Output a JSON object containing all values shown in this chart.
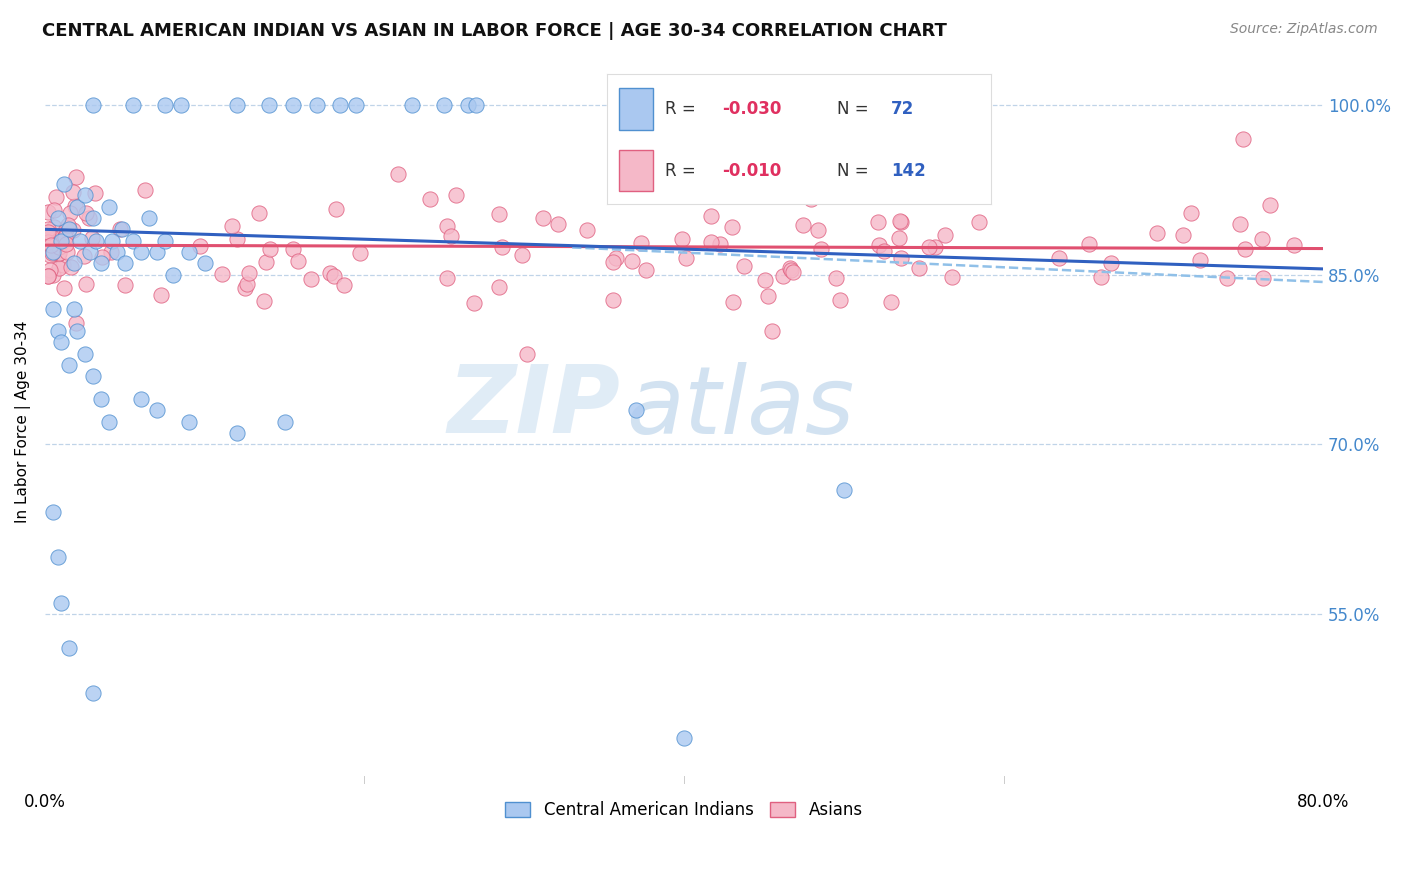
{
  "title": "CENTRAL AMERICAN INDIAN VS ASIAN IN LABOR FORCE | AGE 30-34 CORRELATION CHART",
  "source": "Source: ZipAtlas.com",
  "ylabel": "In Labor Force | Age 30-34",
  "ytick_labels": [
    "100.0%",
    "85.0%",
    "70.0%",
    "55.0%"
  ],
  "ytick_values": [
    1.0,
    0.85,
    0.7,
    0.55
  ],
  "xlim": [
    0.0,
    0.8
  ],
  "ylim": [
    0.4,
    1.04
  ],
  "watermark_zip": "ZIP",
  "watermark_atlas": "atlas",
  "blue_fill": "#aac8f0",
  "blue_edge": "#5090d0",
  "pink_fill": "#f5b8c8",
  "pink_edge": "#e06080",
  "blue_line": "#3060c0",
  "pink_line": "#e05070",
  "dash_line": "#90c0e8",
  "grid_color": "#c0d4e8",
  "title_color": "#111111",
  "source_color": "#888888",
  "ytick_color": "#4488cc",
  "legend_r_color": "#e03060",
  "legend_n_color": "#3060c0"
}
